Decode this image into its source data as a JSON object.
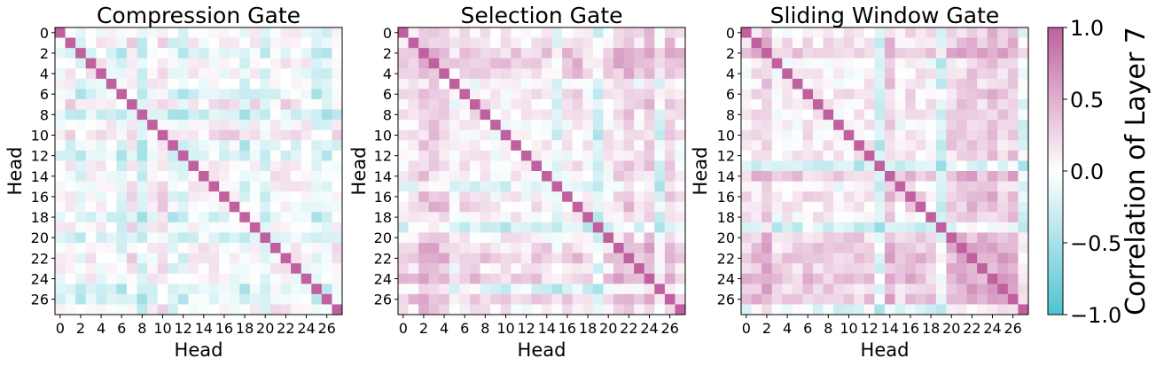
{
  "chart_data": {
    "type": "heatmap",
    "n_heads": 28,
    "colorbar": {
      "label": "Correlation of Layer 7",
      "range": [
        -1.0,
        1.0
      ],
      "ticks": [
        -1.0,
        -0.5,
        0.0,
        0.5,
        1.0
      ],
      "tick_labels": [
        "−1.0",
        "−0.5",
        "0.0",
        "0.5",
        "1.0"
      ],
      "colors": {
        "low": "#4fc3d1",
        "mid": "#ffffff",
        "high": "#c0609e"
      }
    },
    "panels": [
      {
        "title": "Compression Gate",
        "xlabel": "Head",
        "ylabel": "Head",
        "x_tick_labels": [
          "0",
          "2",
          "4",
          "6",
          "8",
          "10",
          "12",
          "14",
          "16",
          "18",
          "20",
          "22",
          "24",
          "26"
        ],
        "y_tick_labels": [
          "0",
          "2",
          "4",
          "6",
          "8",
          "10",
          "12",
          "14",
          "16",
          "18",
          "20",
          "22",
          "24",
          "26"
        ],
        "head_bias": [
          0.05,
          0.05,
          -0.18,
          0.05,
          0.02,
          0.0,
          -0.35,
          0.25,
          -0.4,
          0.05,
          0.3,
          -0.25,
          -0.3,
          0.05,
          0.0,
          0.05,
          0.0,
          0.05,
          -0.3,
          0.1,
          -0.3,
          0.1,
          0.05,
          0.05,
          0.0,
          -0.25,
          -0.3,
          0.05
        ],
        "seed": 11
      },
      {
        "title": "Selection Gate",
        "xlabel": "Head",
        "ylabel": "Head",
        "x_tick_labels": [
          "0",
          "2",
          "4",
          "6",
          "8",
          "10",
          "12",
          "14",
          "16",
          "18",
          "20",
          "22",
          "24",
          "26"
        ],
        "y_tick_labels": [
          "0",
          "2",
          "4",
          "6",
          "8",
          "10",
          "12",
          "14",
          "16",
          "18",
          "20",
          "22",
          "24",
          "26"
        ],
        "head_bias": [
          0.1,
          0.2,
          0.5,
          0.45,
          0.35,
          -0.1,
          0.15,
          0.1,
          0.15,
          0.05,
          0.0,
          0.1,
          0.0,
          0.1,
          0.0,
          -0.3,
          0.05,
          0.2,
          0.0,
          -0.5,
          0.1,
          0.35,
          0.4,
          0.15,
          0.45,
          -0.3,
          0.35,
          0.1
        ],
        "seed": 23
      },
      {
        "title": "Sliding Window Gate",
        "xlabel": "Head",
        "ylabel": "Head",
        "x_tick_labels": [
          "0",
          "2",
          "4",
          "6",
          "8",
          "10",
          "12",
          "14",
          "16",
          "18",
          "20",
          "22",
          "24",
          "26"
        ],
        "y_tick_labels": [
          "0",
          "2",
          "4",
          "6",
          "8",
          "10",
          "12",
          "14",
          "16",
          "18",
          "20",
          "22",
          "24",
          "26"
        ],
        "head_bias": [
          0.15,
          0.2,
          0.45,
          0.0,
          0.0,
          0.1,
          0.15,
          0.1,
          0.1,
          0.0,
          0.1,
          0.05,
          0.1,
          -0.6,
          0.4,
          0.0,
          0.2,
          0.15,
          0.05,
          -0.5,
          0.35,
          0.35,
          0.45,
          0.35,
          0.5,
          0.4,
          0.45,
          -0.3
        ],
        "seed": 37
      }
    ]
  }
}
